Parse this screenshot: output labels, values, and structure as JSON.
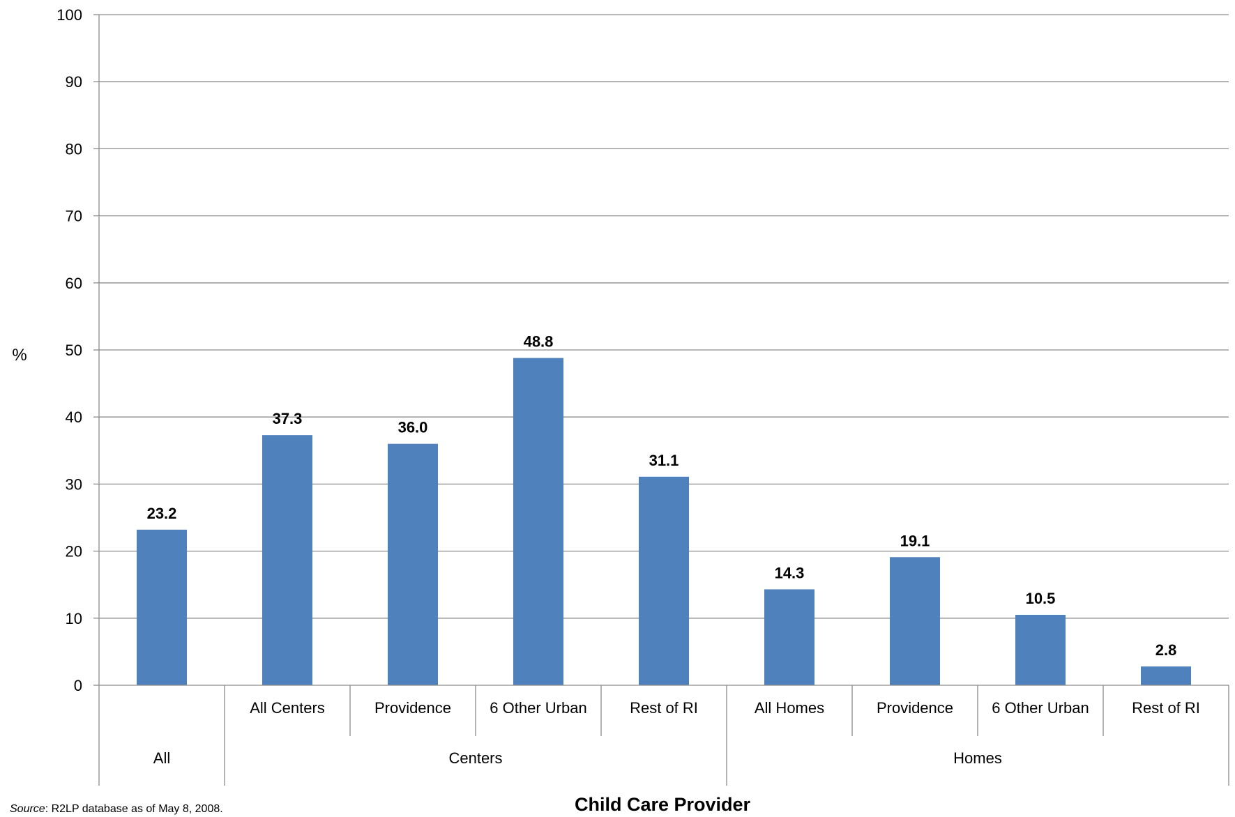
{
  "chart_data": {
    "type": "bar",
    "ylabel": "%",
    "xlabel": "Child Care Provider",
    "ylim": [
      0,
      100
    ],
    "yticks": [
      0,
      10,
      20,
      30,
      40,
      50,
      60,
      70,
      80,
      90,
      100
    ],
    "grid": true,
    "bar_color": "#4F81BD",
    "categories": [
      "",
      "All Centers",
      "Providence",
      "6 Other Urban",
      "Rest of RI",
      "All Homes",
      "Providence",
      "6 Other Urban",
      "Rest of RI"
    ],
    "groups": [
      {
        "label": "All",
        "span": 1
      },
      {
        "label": "Centers",
        "span": 4
      },
      {
        "label": "Homes",
        "span": 4
      }
    ],
    "values": [
      23.2,
      37.3,
      36.0,
      48.8,
      31.1,
      14.3,
      19.1,
      10.5,
      2.8
    ],
    "value_labels": [
      "23.2",
      "37.3",
      "36.0",
      "48.8",
      "31.1",
      "14.3",
      "19.1",
      "10.5",
      "2.8"
    ]
  },
  "source": {
    "prefix": "Source",
    "text": ": R2LP database as of May 8, 2008."
  }
}
